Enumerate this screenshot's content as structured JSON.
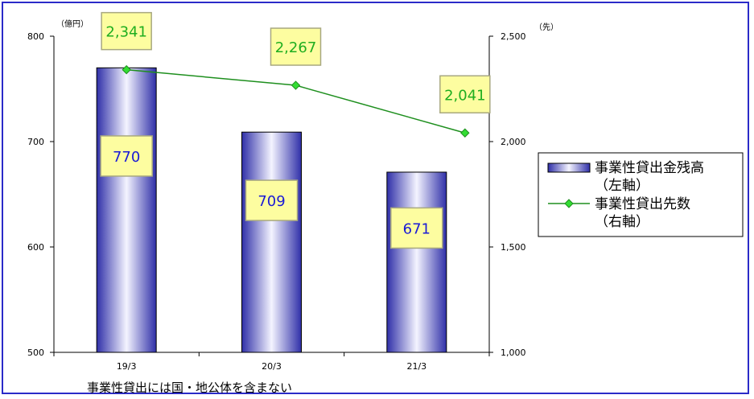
{
  "chart_data": {
    "type": "bar",
    "categories": [
      "19/3",
      "20/3",
      "21/3"
    ],
    "series": [
      {
        "name": "事業性貸出金残高（左軸）",
        "kind": "bar",
        "axis": "left",
        "values": [
          770,
          709,
          671
        ],
        "labels": [
          "770",
          "709",
          "671"
        ],
        "color": "#3d3db8"
      },
      {
        "name": "事業性貸出先数（右軸）",
        "kind": "line",
        "axis": "right",
        "values": [
          2341,
          2267,
          2041
        ],
        "labels": [
          "2,341",
          "2,267",
          "2,041"
        ],
        "color": "#1e8f1e",
        "marker_color": "#33dd33"
      }
    ],
    "y_left": {
      "unit": "（億円）",
      "ylim": [
        500,
        800
      ],
      "ticks": [
        500,
        600,
        700,
        800
      ],
      "tick_labels": [
        "500",
        "600",
        "700",
        "800"
      ]
    },
    "y_right": {
      "unit": "（先）",
      "ylim": [
        1000,
        2500
      ],
      "ticks": [
        1000,
        1500,
        2000,
        2500
      ],
      "tick_labels": [
        "1,000",
        "1,500",
        "2,000",
        "2,500"
      ]
    },
    "grid": false,
    "legend": {
      "placement": "right",
      "entries": [
        {
          "line1": "事業性貸出金残高",
          "line2": "（左軸）",
          "kind": "bar"
        },
        {
          "line1": "事業性貸出先数",
          "line2": "（右軸）",
          "kind": "line"
        }
      ]
    },
    "note": "事業性貸出には国・地公体を含まない",
    "colors": {
      "frame": "#2b2bc8",
      "label_box_fill": "#fdfda0",
      "label_box_stroke": "#a8a880",
      "bar_label_text": "#1a1ad6",
      "line_label_text": "#1fae1f"
    }
  }
}
